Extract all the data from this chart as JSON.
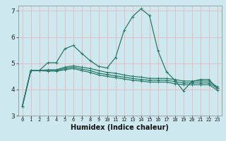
{
  "title": "",
  "xlabel": "Humidex (Indice chaleur)",
  "ylabel": "",
  "bg_color": "#cde8ee",
  "grid_color": "#e8b8b8",
  "line_color": "#2a7a6a",
  "xlim": [
    -0.5,
    23.5
  ],
  "ylim": [
    3,
    7.2
  ],
  "yticks": [
    3,
    4,
    5,
    6,
    7
  ],
  "xticks": [
    0,
    1,
    2,
    3,
    4,
    5,
    6,
    7,
    8,
    9,
    10,
    11,
    12,
    13,
    14,
    15,
    16,
    17,
    18,
    19,
    20,
    21,
    22,
    23
  ],
  "series": [
    [
      3.35,
      4.72,
      4.72,
      5.02,
      5.02,
      5.55,
      5.68,
      5.38,
      5.1,
      4.88,
      4.82,
      5.22,
      6.25,
      6.78,
      7.08,
      6.82,
      5.48,
      4.68,
      4.35,
      3.95,
      4.3,
      4.38,
      4.38,
      4.05
    ],
    [
      3.35,
      4.72,
      4.72,
      4.75,
      4.75,
      4.85,
      4.9,
      4.85,
      4.8,
      4.72,
      4.65,
      4.62,
      4.55,
      4.5,
      4.47,
      4.42,
      4.42,
      4.42,
      4.38,
      4.32,
      4.32,
      4.32,
      4.32,
      4.1
    ],
    [
      3.35,
      4.72,
      4.72,
      4.72,
      4.72,
      4.8,
      4.85,
      4.78,
      4.72,
      4.62,
      4.57,
      4.52,
      4.47,
      4.42,
      4.38,
      4.35,
      4.35,
      4.35,
      4.3,
      4.25,
      4.25,
      4.25,
      4.25,
      4.05
    ],
    [
      3.35,
      4.72,
      4.72,
      4.7,
      4.7,
      4.75,
      4.8,
      4.72,
      4.65,
      4.55,
      4.5,
      4.45,
      4.4,
      4.35,
      4.32,
      4.28,
      4.28,
      4.28,
      4.22,
      4.18,
      4.18,
      4.18,
      4.18,
      3.98
    ]
  ]
}
